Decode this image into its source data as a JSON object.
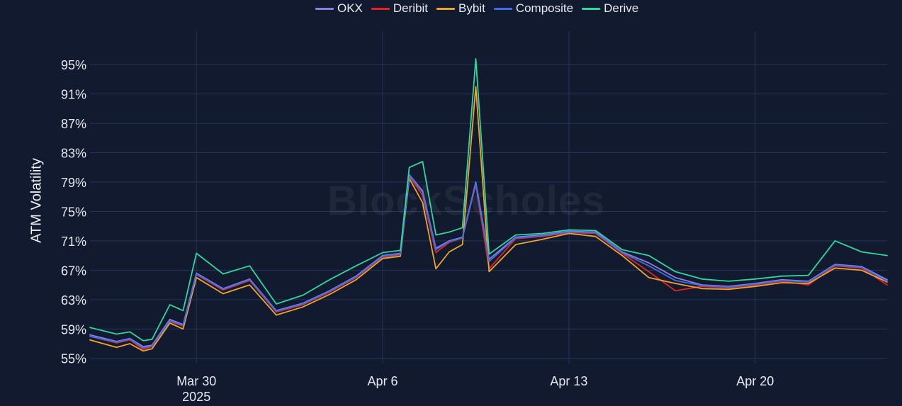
{
  "watermark": "BlockScholes",
  "colors": {
    "background": "#111a2e",
    "grid": "#26345a"
  },
  "chart_data": {
    "type": "line",
    "xlabel": "",
    "ylabel": "ATM Volatility",
    "x_start": "2025-03-26",
    "x_end": "2025-04-24T23:00",
    "x_ticks": [
      {
        "date": "2025-03-30",
        "label": "Mar 30",
        "sublabel": "2025"
      },
      {
        "date": "2025-04-06",
        "label": "Apr 6",
        "sublabel": ""
      },
      {
        "date": "2025-04-13",
        "label": "Apr 13",
        "sublabel": ""
      },
      {
        "date": "2025-04-20",
        "label": "Apr 20",
        "sublabel": ""
      }
    ],
    "ylim": [
      0.543,
      0.982
    ],
    "y_ticks": [
      {
        "value": 0.55,
        "label": "55%"
      },
      {
        "value": 0.59,
        "label": "59%"
      },
      {
        "value": 0.63,
        "label": "63%"
      },
      {
        "value": 0.67,
        "label": "67%"
      },
      {
        "value": 0.71,
        "label": "71%"
      },
      {
        "value": 0.75,
        "label": "75%"
      },
      {
        "value": 0.79,
        "label": "79%"
      },
      {
        "value": 0.83,
        "label": "83%"
      },
      {
        "value": 0.87,
        "label": "87%"
      },
      {
        "value": 0.91,
        "label": "91%"
      },
      {
        "value": 0.95,
        "label": "95%"
      }
    ],
    "grid": true,
    "legend_position": "top-center",
    "x": [
      "2025-03-26",
      "2025-03-27",
      "2025-03-27T12:00",
      "2025-03-28",
      "2025-03-28T08:00",
      "2025-03-29",
      "2025-03-29T12:00",
      "2025-03-30",
      "2025-03-31",
      "2025-04-01",
      "2025-04-02",
      "2025-04-03",
      "2025-04-04",
      "2025-04-05",
      "2025-04-06",
      "2025-04-06T16:00",
      "2025-04-07",
      "2025-04-07T12:00",
      "2025-04-08",
      "2025-04-08T12:00",
      "2025-04-09",
      "2025-04-09T12:00",
      "2025-04-10",
      "2025-04-11",
      "2025-04-12",
      "2025-04-13",
      "2025-04-14",
      "2025-04-15",
      "2025-04-16",
      "2025-04-17",
      "2025-04-18",
      "2025-04-19",
      "2025-04-20",
      "2025-04-21",
      "2025-04-22",
      "2025-04-23",
      "2025-04-24",
      "2025-04-24T23:00"
    ],
    "series": [
      {
        "name": "OKX",
        "color": "#8b7fe0",
        "values": [
          0.582,
          0.573,
          0.577,
          0.566,
          0.568,
          0.603,
          0.596,
          0.666,
          0.645,
          0.658,
          0.615,
          0.625,
          0.642,
          0.662,
          0.69,
          0.693,
          0.8,
          0.778,
          0.7,
          0.71,
          0.715,
          0.79,
          0.685,
          0.715,
          0.718,
          0.723,
          0.722,
          0.695,
          0.68,
          0.66,
          0.65,
          0.648,
          0.652,
          0.657,
          0.655,
          0.678,
          0.675,
          0.657
        ]
      },
      {
        "name": "Deribit",
        "color": "#e0241f",
        "values": [
          0.58,
          0.571,
          0.575,
          0.562,
          0.566,
          0.6,
          0.594,
          0.664,
          0.643,
          0.656,
          0.613,
          0.623,
          0.64,
          0.66,
          0.688,
          0.691,
          0.798,
          0.772,
          0.694,
          0.708,
          0.714,
          0.786,
          0.672,
          0.713,
          0.716,
          0.721,
          0.72,
          0.693,
          0.668,
          0.642,
          0.648,
          0.646,
          0.65,
          0.655,
          0.65,
          0.676,
          0.673,
          0.65
        ]
      },
      {
        "name": "Bybit",
        "color": "#f0a32a",
        "values": [
          0.575,
          0.565,
          0.57,
          0.56,
          0.563,
          0.598,
          0.59,
          0.66,
          0.638,
          0.65,
          0.609,
          0.62,
          0.637,
          0.657,
          0.686,
          0.689,
          0.795,
          0.762,
          0.672,
          0.695,
          0.705,
          0.92,
          0.668,
          0.705,
          0.712,
          0.72,
          0.716,
          0.69,
          0.66,
          0.652,
          0.645,
          0.644,
          0.648,
          0.653,
          0.652,
          0.673,
          0.67,
          0.654
        ]
      },
      {
        "name": "Composite",
        "color": "#3d6ee6",
        "values": [
          0.58,
          0.572,
          0.576,
          0.564,
          0.567,
          0.601,
          0.595,
          0.665,
          0.644,
          0.657,
          0.614,
          0.624,
          0.641,
          0.661,
          0.689,
          0.692,
          0.799,
          0.776,
          0.698,
          0.709,
          0.714,
          0.788,
          0.682,
          0.714,
          0.717,
          0.722,
          0.721,
          0.694,
          0.676,
          0.656,
          0.649,
          0.647,
          0.651,
          0.656,
          0.654,
          0.677,
          0.674,
          0.655
        ]
      },
      {
        "name": "Derive",
        "color": "#2fd6a0",
        "values": [
          0.592,
          0.583,
          0.586,
          0.574,
          0.576,
          0.623,
          0.615,
          0.693,
          0.665,
          0.676,
          0.624,
          0.636,
          0.657,
          0.676,
          0.694,
          0.697,
          0.81,
          0.818,
          0.718,
          0.722,
          0.728,
          0.958,
          0.692,
          0.718,
          0.72,
          0.725,
          0.724,
          0.698,
          0.69,
          0.668,
          0.658,
          0.655,
          0.658,
          0.662,
          0.663,
          0.71,
          0.695,
          0.69
        ]
      }
    ]
  }
}
